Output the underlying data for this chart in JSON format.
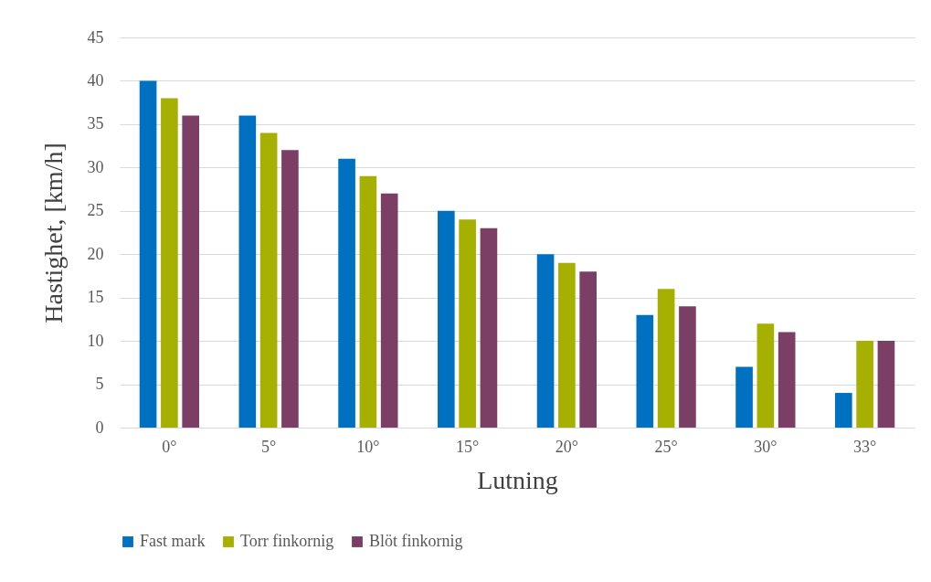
{
  "chart_data": {
    "type": "bar",
    "xlabel": "Lutning",
    "ylabel": "Hastighet, [km/h]",
    "categories": [
      "0°",
      "5°",
      "10°",
      "15°",
      "20°",
      "25°",
      "30°",
      "33°"
    ],
    "series": [
      {
        "name": "Fast mark",
        "color": "#0070c0",
        "values": [
          40,
          36,
          31,
          25,
          20,
          13,
          7,
          4
        ]
      },
      {
        "name": "Torr finkornig",
        "color": "#a5b000",
        "values": [
          38,
          34,
          29,
          24,
          19,
          16,
          12,
          10
        ]
      },
      {
        "name": "Blöt finkornig",
        "color": "#7b3f65",
        "values": [
          36,
          32,
          27,
          23,
          18,
          14,
          11,
          10
        ]
      }
    ],
    "ylim": [
      0,
      45
    ],
    "yticks": [
      0,
      5,
      10,
      15,
      20,
      25,
      30,
      35,
      40,
      45
    ],
    "grid": "y",
    "legend": "bottom"
  }
}
